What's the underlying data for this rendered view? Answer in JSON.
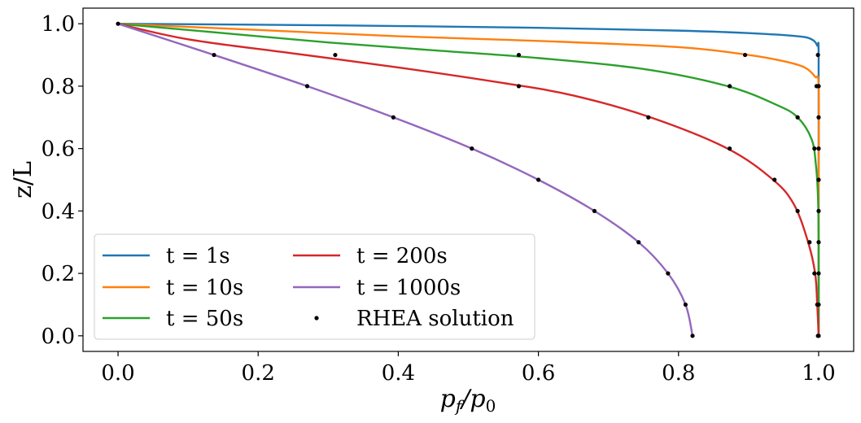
{
  "chart_data": {
    "type": "line",
    "title": "",
    "xlabel": "p_f/p_0",
    "xlabel_parts": {
      "base": "p",
      "sub1": "f",
      "slash": "/",
      "base2": "p",
      "sub2": "0"
    },
    "ylabel": "z/L",
    "xlim": [
      -0.05,
      1.05
    ],
    "ylim": [
      -0.05,
      1.05
    ],
    "xticks": [
      0.0,
      0.2,
      0.4,
      0.6,
      0.8,
      1.0
    ],
    "xtick_labels": [
      "0.0",
      "0.2",
      "0.4",
      "0.6",
      "0.8",
      "1.0"
    ],
    "yticks": [
      0.0,
      0.2,
      0.4,
      0.6,
      0.8,
      1.0
    ],
    "ytick_labels": [
      "0.0",
      "0.2",
      "0.4",
      "0.6",
      "0.8",
      "1.0"
    ],
    "grid": false,
    "legend_position": "lower-left",
    "legend_columns": 2,
    "series": [
      {
        "name": "t = 1s",
        "color": "#1f77b4",
        "kind": "line",
        "points": [
          [
            0.0,
            1.0
          ],
          [
            0.3,
            0.995
          ],
          [
            0.6,
            0.987
          ],
          [
            0.8,
            0.978
          ],
          [
            0.9,
            0.97
          ],
          [
            0.97,
            0.96
          ],
          [
            0.99,
            0.95
          ],
          [
            0.998,
            0.93
          ],
          [
            1.0,
            0.9
          ],
          [
            1.0,
            0.5
          ],
          [
            1.0,
            0.0
          ]
        ]
      },
      {
        "name": "t = 10s",
        "color": "#ff7f0e",
        "kind": "line",
        "points": [
          [
            0.0,
            1.0
          ],
          [
            0.2,
            0.98
          ],
          [
            0.4,
            0.96
          ],
          [
            0.6,
            0.945
          ],
          [
            0.8,
            0.925
          ],
          [
            0.9,
            0.9
          ],
          [
            0.95,
            0.88
          ],
          [
            0.98,
            0.86
          ],
          [
            0.995,
            0.83
          ],
          [
            1.0,
            0.8
          ],
          [
            1.0,
            0.5
          ],
          [
            1.0,
            0.0
          ]
        ]
      },
      {
        "name": "t = 50s",
        "color": "#2ca02c",
        "kind": "line",
        "points": [
          [
            0.0,
            1.0
          ],
          [
            0.15,
            0.97
          ],
          [
            0.3,
            0.94
          ],
          [
            0.45,
            0.915
          ],
          [
            0.6,
            0.89
          ],
          [
            0.75,
            0.855
          ],
          [
            0.87,
            0.8
          ],
          [
            0.94,
            0.74
          ],
          [
            0.97,
            0.7
          ],
          [
            0.99,
            0.63
          ],
          [
            0.996,
            0.55
          ],
          [
            0.999,
            0.45
          ],
          [
            1.0,
            0.3
          ],
          [
            1.0,
            0.0
          ]
        ]
      },
      {
        "name": "t = 200s",
        "color": "#d62728",
        "kind": "line",
        "points": [
          [
            0.0,
            1.0
          ],
          [
            0.1,
            0.95
          ],
          [
            0.25,
            0.905
          ],
          [
            0.4,
            0.86
          ],
          [
            0.55,
            0.81
          ],
          [
            0.65,
            0.77
          ],
          [
            0.76,
            0.7
          ],
          [
            0.87,
            0.6
          ],
          [
            0.935,
            0.5
          ],
          [
            0.965,
            0.42
          ],
          [
            0.985,
            0.3
          ],
          [
            0.995,
            0.2
          ],
          [
            0.998,
            0.1
          ],
          [
            1.0,
            0.0
          ]
        ]
      },
      {
        "name": "t = 1000s",
        "color": "#9467bd",
        "kind": "line",
        "points": [
          [
            0.0,
            1.0
          ],
          [
            0.137,
            0.9
          ],
          [
            0.27,
            0.8
          ],
          [
            0.393,
            0.7
          ],
          [
            0.505,
            0.6
          ],
          [
            0.6,
            0.5
          ],
          [
            0.68,
            0.4
          ],
          [
            0.743,
            0.3
          ],
          [
            0.785,
            0.2
          ],
          [
            0.81,
            0.1
          ],
          [
            0.82,
            0.0
          ]
        ]
      },
      {
        "name": "RHEA solution",
        "color": "#000000",
        "kind": "scatter",
        "points": [
          [
            0.0,
            1.0
          ],
          [
            0.137,
            0.9
          ],
          [
            0.27,
            0.8
          ],
          [
            0.393,
            0.7
          ],
          [
            0.505,
            0.6
          ],
          [
            0.6,
            0.5
          ],
          [
            0.68,
            0.4
          ],
          [
            0.743,
            0.3
          ],
          [
            0.785,
            0.2
          ],
          [
            0.81,
            0.1
          ],
          [
            0.82,
            0.0
          ],
          [
            0.31,
            0.9
          ],
          [
            0.572,
            0.8
          ],
          [
            0.757,
            0.7
          ],
          [
            0.873,
            0.6
          ],
          [
            0.937,
            0.5
          ],
          [
            0.97,
            0.4
          ],
          [
            0.987,
            0.3
          ],
          [
            0.994,
            0.2
          ],
          [
            0.998,
            0.1
          ],
          [
            0.999,
            0.0
          ],
          [
            0.572,
            0.9
          ],
          [
            0.873,
            0.8
          ],
          [
            0.97,
            0.7
          ],
          [
            0.994,
            0.6
          ],
          [
            1.0,
            0.5
          ],
          [
            1.0,
            0.4
          ],
          [
            1.0,
            0.3
          ],
          [
            1.0,
            0.2
          ],
          [
            1.0,
            0.1
          ],
          [
            1.0,
            0.0
          ],
          [
            0.895,
            0.9
          ],
          [
            0.997,
            0.8
          ],
          [
            1.0,
            0.7
          ],
          [
            1.0,
            0.6
          ],
          [
            0.999,
            0.9
          ],
          [
            1.0,
            0.8
          ]
        ]
      }
    ]
  }
}
